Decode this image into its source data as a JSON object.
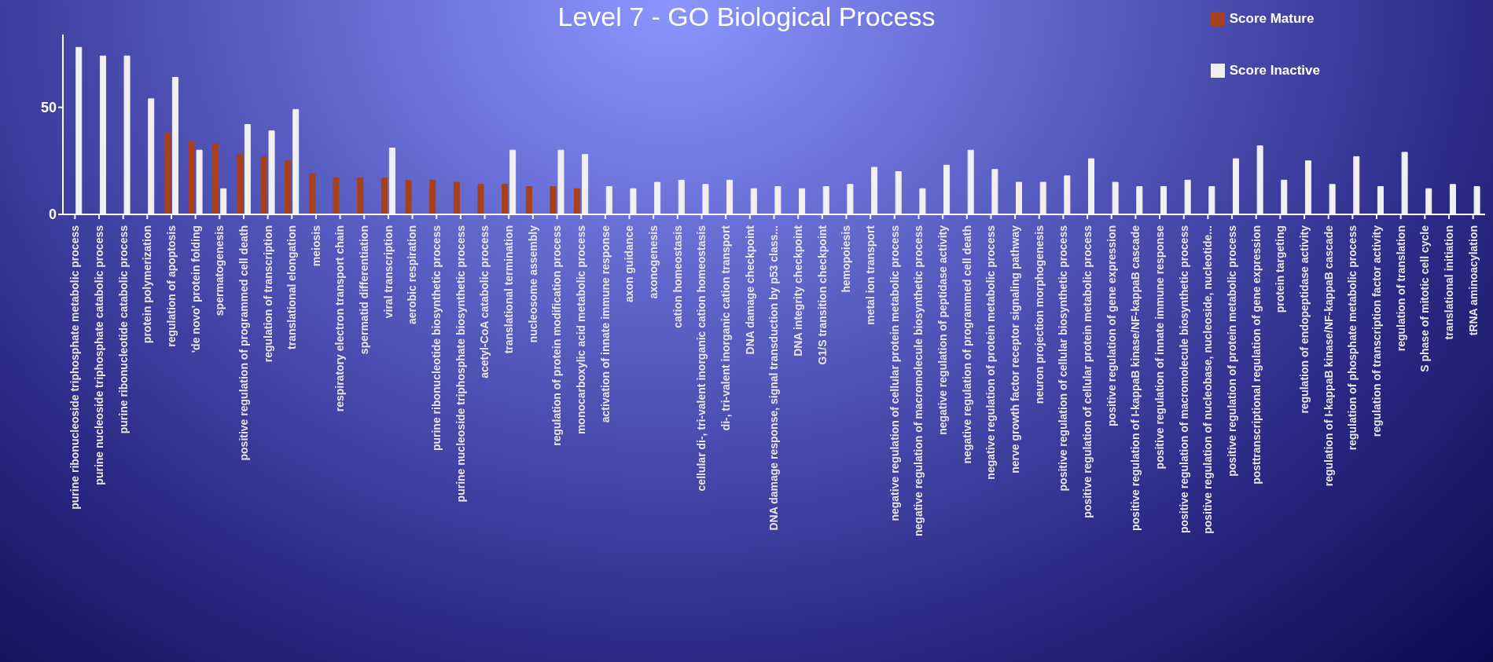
{
  "chart_data": {
    "type": "bar",
    "title": "Level 7 - GO Biological  Process",
    "categories": [
      "purine ribonucleoside triphosphate metabolic process",
      "purine nucleoside triphosphate catabolic process",
      "purine ribonucleotide catabolic process",
      "protein polymerization",
      "regulation of apoptosis",
      "'de novo' protein folding",
      "spermatogenesis",
      "positive regulation of programmed cell death",
      "regulation of transcription",
      "translational elongation",
      "meiosis",
      "respiratory electron transport chain",
      "spermatid differentiation",
      "viral transcription",
      "aerobic respiration",
      "purine ribonucleotide biosynthetic process",
      "purine nucleoside triphosphate biosynthetic process",
      "acetyl-CoA catabolic process",
      "translational termination",
      "nucleosome assembly",
      "regulation of protein modification process",
      "monocarboxylic acid metabolic process",
      "activation of innate immune response",
      "axon guidance",
      "axonogenesis",
      "cation homeostasis",
      "cellular di-, tri-valent inorganic cation homeostasis",
      "di-, tri-valent inorganic cation transport",
      "DNA damage checkpoint",
      "DNA damage response, signal transduction by p53 class...",
      "DNA integrity checkpoint",
      "G1/S transition checkpoint",
      "hemopoiesis",
      "metal ion transport",
      "negative regulation of cellular protein metabolic process",
      "negative regulation of macromolecule biosynthetic process",
      "negative regulation of peptidase activity",
      "negative regulation of programmed cell death",
      "negative regulation of protein metabolic process",
      "nerve growth factor receptor signaling pathway",
      "neuron projection morphogenesis",
      "positive regulation of cellular biosynthetic process",
      "positive regulation of cellular protein metabolic process",
      "positive regulation of gene expression",
      "positive regulation of I-kappaB kinase/NF-kappaB cascade",
      "positive regulation of innate immune response",
      "positive regulation of macromolecule biosynthetic process",
      "positive regulation of nucleobase, nucleoside, nucleotide...",
      "positive regulation of protein metabolic process",
      "posttranscriptional regulation of gene expression",
      "protein targeting",
      "regulation of endopeptidase activity",
      "regulation of I-kappaB kinase/NF-kappaB cascade",
      "regulation of phosphate metabolic process",
      "regulation of transcription factor activity",
      "regulation of translation",
      "S phase of mitotic cell cycle",
      "translational initiation",
      "tRNA aminoacylation"
    ],
    "series": [
      {
        "name": "Score Mature",
        "color": "#a8401c",
        "values": [
          null,
          null,
          null,
          null,
          38,
          34,
          33,
          28,
          27,
          25,
          19,
          17,
          17,
          17,
          16,
          16,
          15,
          14,
          14,
          13,
          13,
          12,
          null,
          null,
          null,
          null,
          null,
          null,
          null,
          null,
          null,
          null,
          null,
          null,
          null,
          null,
          null,
          null,
          null,
          null,
          null,
          null,
          null,
          null,
          null,
          null,
          null,
          null,
          null,
          null,
          null,
          null,
          null,
          null,
          null,
          null,
          null,
          null,
          null
        ]
      },
      {
        "name": "Score Inactive",
        "color": "#f0f0f0",
        "values": [
          78,
          74,
          74,
          54,
          64,
          30,
          12,
          42,
          39,
          49,
          null,
          null,
          null,
          31,
          null,
          null,
          null,
          null,
          30,
          null,
          30,
          28,
          13,
          12,
          15,
          16,
          14,
          16,
          12,
          13,
          12,
          13,
          14,
          22,
          20,
          12,
          23,
          30,
          21,
          15,
          15,
          18,
          26,
          15,
          13,
          13,
          16,
          13,
          26,
          32,
          16,
          25,
          14,
          27,
          13,
          29,
          12,
          14,
          13
        ]
      }
    ],
    "ylim": [
      0,
      84
    ],
    "yticks": [
      0,
      50
    ],
    "legend": "top right"
  }
}
